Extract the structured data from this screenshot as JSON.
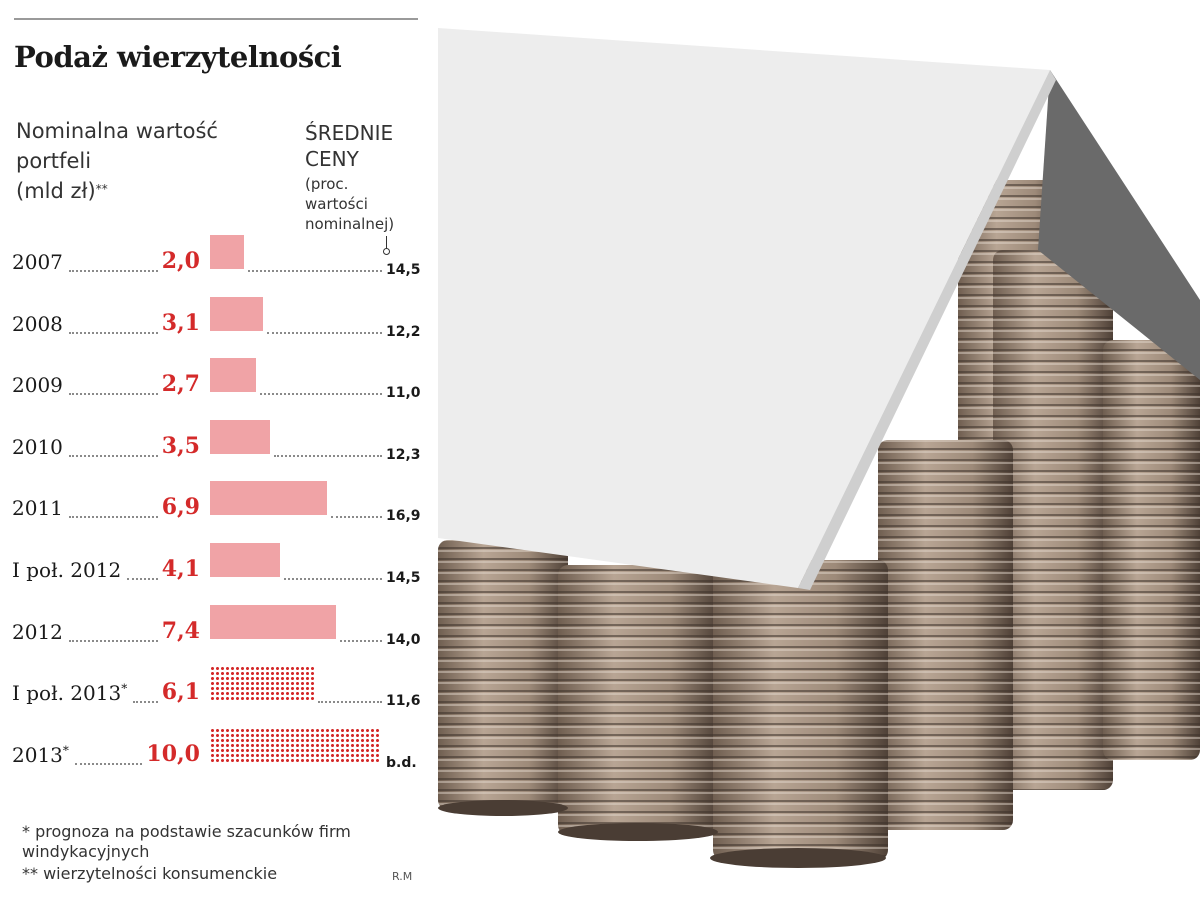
{
  "header": {
    "title": "Podaż wierzytelności",
    "subtitle": "Nominalna wartość\nportfeli\n(mld zł)",
    "subtitle_mark": "**",
    "prices_title": "ŚREDNIE\nCENY",
    "prices_subtitle": "(proc.\nwartości\nnominalnej)"
  },
  "chart_data": {
    "type": "bar",
    "orientation": "horizontal",
    "title": "Podaż wierzytelności",
    "categories": [
      "2007",
      "2008",
      "2009",
      "2010",
      "2011",
      "I poł. 2012",
      "2012",
      "I poł. 2013*",
      "2013*"
    ],
    "series": [
      {
        "name": "Nominalna wartość portfeli (mld zł)**",
        "values": [
          2.0,
          3.1,
          2.7,
          3.5,
          6.9,
          4.1,
          7.4,
          6.1,
          10.0
        ],
        "labels": [
          "2,0",
          "3,1",
          "2,7",
          "3,5",
          "6,9",
          "4,1",
          "7,4",
          "6,1",
          "10,0"
        ],
        "forecast": [
          false,
          false,
          false,
          false,
          false,
          false,
          false,
          true,
          true
        ]
      },
      {
        "name": "ŚREDNIE CENY (proc. wartości nominalnej)",
        "values": [
          14.5,
          12.2,
          11.0,
          12.3,
          16.9,
          14.5,
          14.0,
          11.6,
          null
        ],
        "labels": [
          "14,5",
          "12,2",
          "11,0",
          "12,3",
          "16,9",
          "14,5",
          "14,0",
          "11,6",
          "b.d."
        ]
      }
    ],
    "colors": {
      "bar": "#f0a3a6",
      "forecast_dots": "#d42a2a",
      "value_text": "#d42a2a"
    }
  },
  "footnotes": {
    "forecast": "* prognoza na podstawie szacunków firm windykacyjnych",
    "consumer": "** wierzytelności konsumenckie",
    "credit": "R.M"
  },
  "image": {
    "description_icon": "house-of-coins-photo"
  }
}
